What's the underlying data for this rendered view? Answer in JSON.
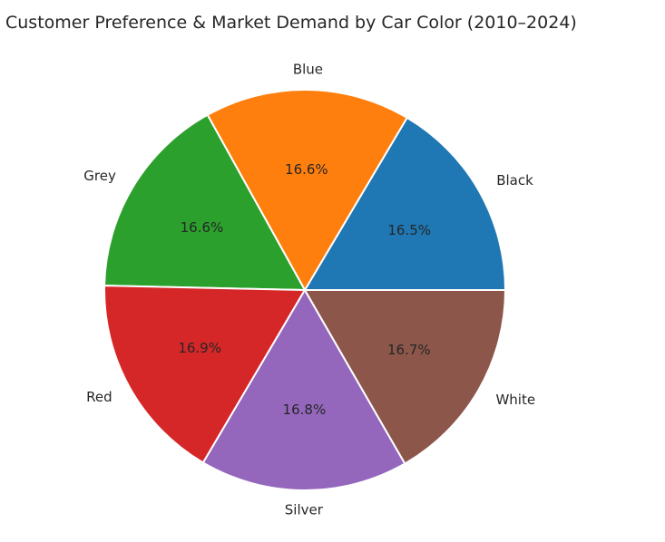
{
  "chart_data": {
    "type": "pie",
    "title": "Customer Preference & Market Demand by Car Color (2010–2024)",
    "categories": [
      "Black",
      "Blue",
      "Grey",
      "Red",
      "Silver",
      "White"
    ],
    "values": [
      16.5,
      16.6,
      16.6,
      16.9,
      16.8,
      16.7
    ],
    "pct_labels": [
      "16.5%",
      "16.6%",
      "16.6%",
      "16.9%",
      "16.8%",
      "16.7%"
    ],
    "colors": [
      "#1f77b4",
      "#ff7f0e",
      "#2ca02c",
      "#d62728",
      "#9467bd",
      "#8c564b"
    ],
    "start_angle_deg": 0,
    "direction": "counterclockwise",
    "legend": "none"
  }
}
